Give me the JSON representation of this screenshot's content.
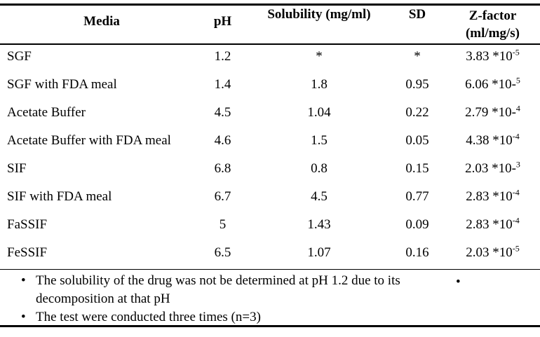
{
  "table": {
    "headers": {
      "media": "Media",
      "ph": "pH",
      "solubility": "Solubility (mg/ml)",
      "sd": "SD",
      "zfactor_line1": "Z-factor",
      "zfactor_line2": "(ml/mg/s)"
    },
    "rows": [
      {
        "media": "SGF",
        "ph": "1.2",
        "solubility": "*",
        "sd": "*",
        "z_base": "3.83 *10",
        "z_sup": "-5"
      },
      {
        "media": "SGF with FDA meal",
        "ph": "1.4",
        "solubility": "1.8",
        "sd": "0.95",
        "z_base": "6.06 *10-",
        "z_sup": "5"
      },
      {
        "media": "Acetate Buffer",
        "ph": "4.5",
        "solubility": "1.04",
        "sd": "0.22",
        "z_base": "2.79 *10-",
        "z_sup": "4"
      },
      {
        "media": "Acetate Buffer with FDA meal",
        "ph": "4.6",
        "solubility": "1.5",
        "sd": "0.05",
        "z_base": "4.38 *10",
        "z_sup": "-4"
      },
      {
        "media": "SIF",
        "ph": "6.8",
        "solubility": "0.8",
        "sd": "0.15",
        "z_base": "2.03 *10-",
        "z_sup": "3"
      },
      {
        "media": "SIF with FDA meal",
        "ph": "6.7",
        "solubility": "4.5",
        "sd": "0.77",
        "z_base": "2.83 *10",
        "z_sup": "-4"
      },
      {
        "media": "FaSSIF",
        "ph": "5",
        "solubility": "1.43",
        "sd": "0.09",
        "z_base": "2.83 *10",
        "z_sup": "-4"
      },
      {
        "media": "FeSSIF",
        "ph": "6.5",
        "solubility": "1.07",
        "sd": "0.16",
        "z_base": "2.03 *10",
        "z_sup": "-5"
      }
    ]
  },
  "footnotes": {
    "bullet_char": "•",
    "right_bullet": "•",
    "items": [
      "The solubility of the drug was not be determined at pH 1.2 due to its decomposition at that pH",
      "The test were conducted three times (n=3)"
    ]
  }
}
